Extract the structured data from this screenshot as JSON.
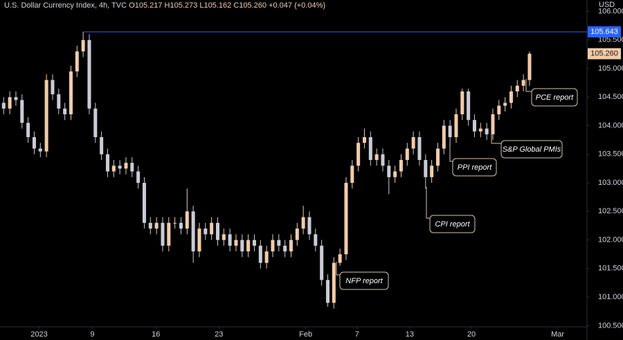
{
  "chart_data": {
    "type": "candlestick",
    "symbol": "U.S. Dollar Currency Index, 4h, TVC",
    "ohlc_text": [
      "O105.217",
      "H105.273",
      "L105.162",
      "C105.260",
      "+0.047 (+0.04%)"
    ],
    "currency": "USD",
    "up_color": "#f3cba6",
    "down_color": "#c9ccd6",
    "open": [
      104.4,
      104.3,
      104.5,
      104.45,
      104.05,
      103.8,
      103.6,
      103.55,
      104.8,
      104.55,
      104.3,
      104.2,
      104.95,
      105.3,
      105.5,
      104.3,
      103.8,
      103.5,
      103.2,
      103.3,
      103.25,
      103.35,
      103.2,
      103.0,
      102.3,
      102.2,
      102.3,
      101.9,
      102.3,
      102.3,
      102.2,
      102.5,
      101.8,
      102.2,
      102.1,
      102.3,
      102.0,
      102.1,
      101.9,
      102.0,
      101.8,
      102.0,
      101.9,
      101.6,
      101.8,
      102.0,
      101.9,
      101.8,
      102.0,
      102.2,
      102.4,
      102.1,
      101.9,
      101.3,
      100.9,
      101.6,
      101.75,
      103.0,
      103.3,
      103.7,
      103.8,
      103.4,
      103.5,
      103.3,
      103.1,
      103.2,
      103.4,
      103.6,
      103.8,
      103.4,
      103.1,
      103.3,
      103.6,
      104.0,
      103.8,
      104.2,
      104.6,
      104.1,
      103.9,
      103.95,
      103.85,
      104.2,
      104.35,
      104.4,
      104.6,
      104.7,
      104.8
    ],
    "high": [
      104.5,
      104.6,
      104.6,
      104.55,
      104.15,
      103.9,
      103.7,
      104.9,
      104.9,
      104.65,
      104.4,
      105.05,
      105.4,
      105.643,
      105.6,
      104.4,
      103.9,
      103.6,
      103.4,
      103.4,
      103.45,
      103.45,
      103.3,
      103.1,
      102.4,
      102.4,
      102.4,
      102.4,
      102.4,
      102.4,
      102.9,
      102.6,
      102.3,
      102.3,
      102.4,
      102.4,
      102.2,
      102.2,
      102.1,
      102.1,
      102.1,
      102.1,
      102.0,
      101.9,
      102.1,
      102.1,
      102.0,
      102.1,
      102.3,
      102.6,
      102.5,
      102.2,
      102.0,
      101.4,
      101.7,
      101.85,
      103.1,
      103.4,
      103.8,
      103.95,
      103.9,
      103.6,
      103.6,
      103.4,
      103.3,
      103.5,
      103.7,
      103.9,
      103.9,
      103.5,
      103.4,
      103.7,
      104.1,
      104.1,
      104.3,
      104.65,
      104.65,
      104.2,
      104.05,
      104.05,
      104.3,
      104.45,
      104.5,
      104.7,
      104.8,
      104.9,
      105.3
    ],
    "low": [
      104.2,
      104.2,
      104.35,
      103.95,
      103.7,
      103.5,
      103.45,
      103.45,
      104.45,
      104.2,
      104.1,
      104.1,
      104.85,
      105.2,
      104.2,
      103.7,
      103.4,
      103.1,
      103.1,
      103.15,
      103.15,
      103.1,
      102.9,
      102.2,
      102.1,
      102.1,
      101.8,
      101.8,
      102.2,
      102.1,
      102.1,
      101.6,
      101.7,
      102.0,
      102.0,
      101.9,
      101.9,
      101.8,
      101.8,
      101.7,
      101.7,
      101.8,
      101.5,
      101.5,
      101.7,
      101.8,
      101.7,
      101.7,
      101.9,
      102.1,
      102.0,
      101.8,
      101.2,
      100.83,
      100.8,
      101.55,
      101.65,
      102.9,
      103.2,
      103.6,
      103.3,
      103.3,
      103.2,
      102.8,
      103.0,
      103.1,
      103.3,
      103.5,
      103.3,
      102.9,
      103.0,
      103.2,
      103.5,
      103.65,
      103.7,
      104.1,
      104.0,
      103.8,
      103.8,
      103.75,
      103.75,
      104.1,
      104.25,
      104.3,
      104.5,
      104.6,
      104.7
    ],
    "close": [
      104.3,
      104.5,
      104.45,
      104.05,
      103.8,
      103.6,
      103.55,
      104.8,
      104.55,
      104.3,
      104.2,
      104.95,
      105.3,
      105.5,
      104.3,
      103.8,
      103.5,
      103.2,
      103.3,
      103.25,
      103.35,
      103.2,
      103.0,
      102.3,
      102.2,
      102.3,
      101.9,
      102.3,
      102.3,
      102.2,
      102.5,
      101.8,
      102.2,
      102.1,
      102.3,
      102.0,
      102.1,
      101.9,
      102.0,
      101.8,
      102.0,
      101.9,
      101.6,
      101.8,
      102.0,
      101.9,
      101.8,
      102.0,
      102.2,
      102.4,
      102.1,
      101.9,
      101.3,
      100.9,
      101.6,
      101.75,
      103.0,
      103.3,
      103.7,
      103.8,
      103.4,
      103.5,
      103.3,
      103.1,
      103.2,
      103.4,
      103.6,
      103.8,
      103.4,
      103.1,
      103.3,
      103.6,
      104.0,
      103.8,
      104.2,
      104.6,
      104.1,
      103.9,
      103.95,
      103.85,
      104.2,
      104.35,
      104.4,
      104.6,
      104.7,
      104.8,
      105.26
    ],
    "xlim": [
      -0.6,
      95.4
    ],
    "xticks": [
      {
        "value": 5.8,
        "label": "2023"
      },
      {
        "value": 14.5,
        "label": "9"
      },
      {
        "value": 24.9,
        "label": "16"
      },
      {
        "value": 35.2,
        "label": "23"
      },
      {
        "value": 49.4,
        "label": "Feb"
      },
      {
        "value": 57.8,
        "label": "7"
      },
      {
        "value": 66.4,
        "label": "13"
      },
      {
        "value": 76.5,
        "label": "20"
      },
      {
        "value": 90.6,
        "label": "Mar"
      }
    ],
    "ylim": [
      100.48,
      106.2
    ],
    "yticks": [
      {
        "value": 100.5,
        "label": "100.500"
      },
      {
        "value": 101,
        "label": "101.000"
      },
      {
        "value": 101.5,
        "label": "101.500"
      },
      {
        "value": 102,
        "label": "102.000"
      },
      {
        "value": 102.5,
        "label": "102.500"
      },
      {
        "value": 103,
        "label": "103.000"
      },
      {
        "value": 103.5,
        "label": "103.500"
      },
      {
        "value": 104,
        "label": "104.000"
      },
      {
        "value": 104.5,
        "label": "104.500"
      },
      {
        "value": 105,
        "label": "105.000"
      },
      {
        "value": 105.5,
        "label": "105.500"
      },
      {
        "value": 106,
        "label": "106.000"
      }
    ],
    "high_line": {
      "value": 105.643,
      "color": "#2962ff"
    },
    "last_price": {
      "value": 105.26,
      "label": "105.260"
    },
    "annotations": [
      "NFP report",
      "CPI report",
      "PPI report",
      "S&P Global PMIs",
      "PCE report"
    ]
  }
}
